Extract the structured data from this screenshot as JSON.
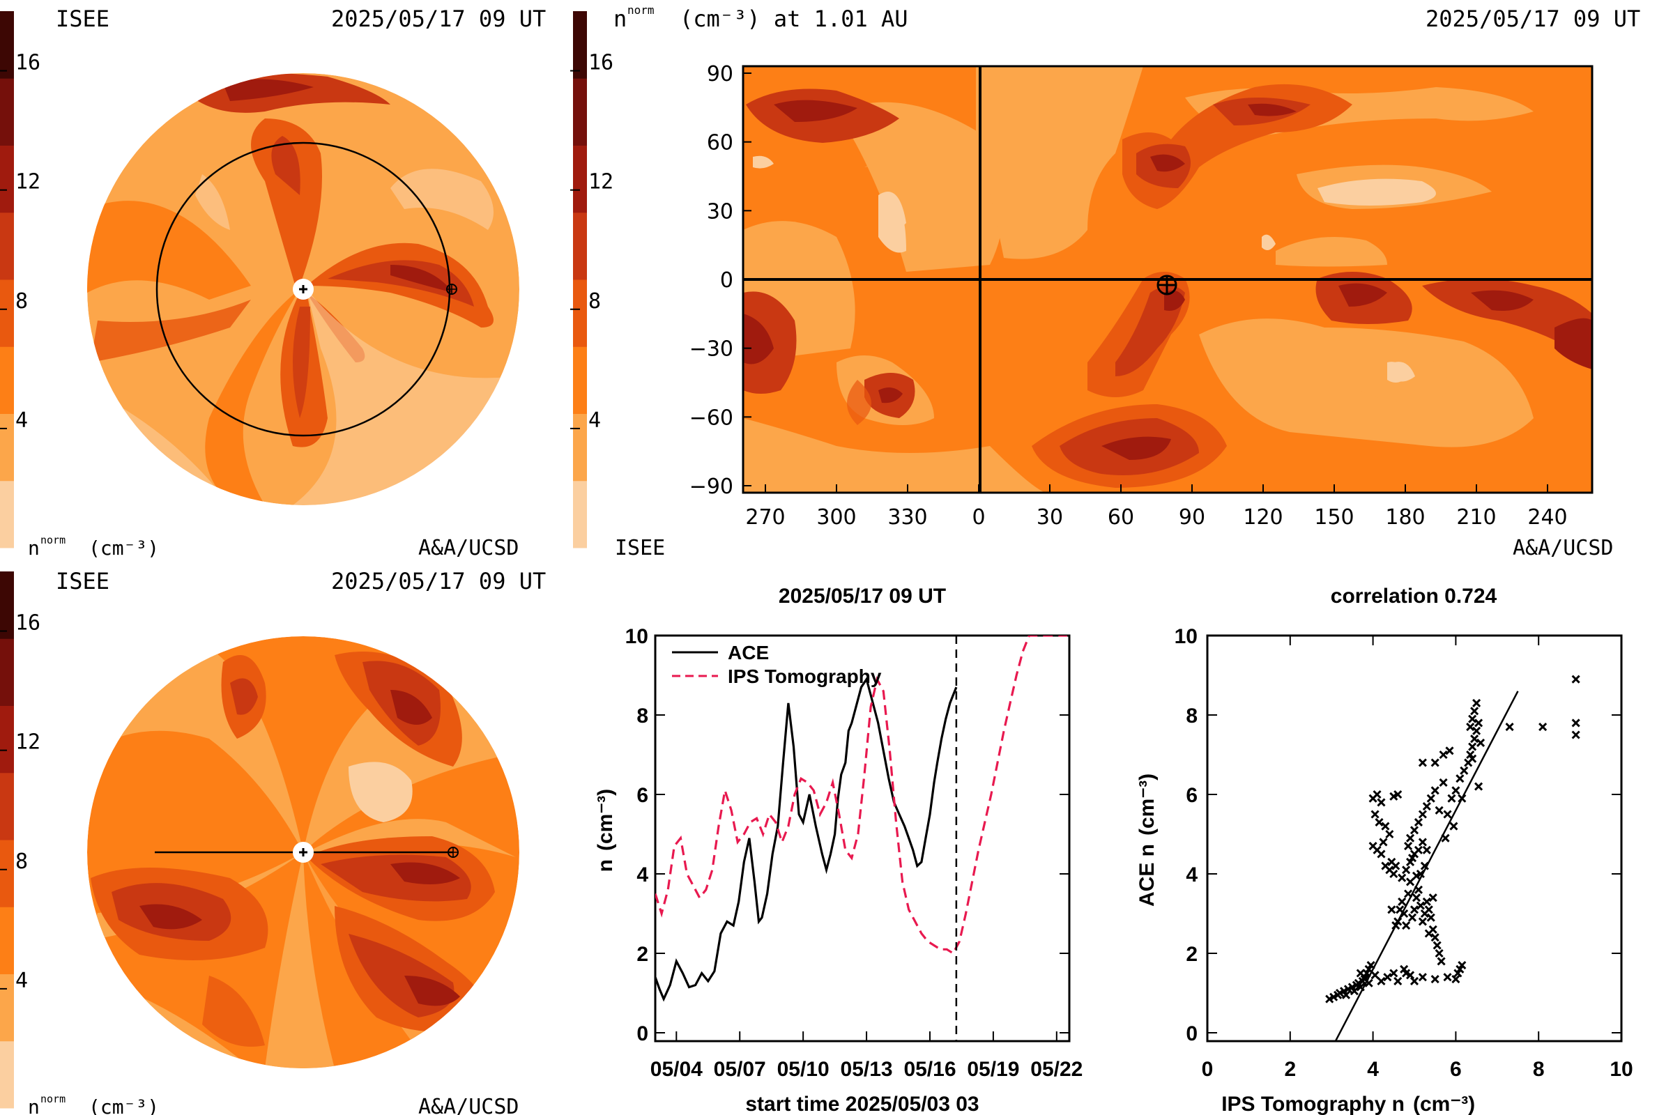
{
  "colors": {
    "bg": "#ffffff",
    "ink": "#000000",
    "levels": [
      "#fbcfa0",
      "#fca64a",
      "#fd7f16",
      "#e9590f",
      "#c93812",
      "#a01b0e",
      "#75100b",
      "#3d0704"
    ],
    "ips_line": "#e8194f"
  },
  "colorbar": {
    "ticks": [
      4,
      8,
      12,
      16
    ],
    "range": [
      0,
      18
    ],
    "title": "n",
    "title_sup": "norm",
    "title_unit": "(cm⁻³)"
  },
  "panels": {
    "top_left": {
      "label_left": "ISEE",
      "time": "2025/05/17 09 UT",
      "unit_main": "n",
      "unit_sup": "norm",
      "unit_rest": "(cm⁻³)",
      "credit": "A&A/UCSD"
    },
    "top_right": {
      "title_main": "n",
      "title_sup": "norm",
      "title_rest": "(cm⁻³) at 1.01 AU",
      "time": "2025/05/17 09 UT",
      "label_left": "ISEE",
      "credit": "A&A/UCSD"
    },
    "bottom_left": {
      "label_left": "ISEE",
      "time": "2025/05/17 09 UT",
      "unit_main": "n",
      "unit_sup": "norm",
      "unit_rest": "(cm⁻³)",
      "credit": "A&A/UCSD"
    }
  },
  "chart_data": [
    {
      "type": "heatmap",
      "name": "ecliptic-view",
      "title": "2025/05/17 09 UT",
      "colorbar_ticks": [
        4,
        8,
        12,
        16
      ]
    },
    {
      "type": "heatmap",
      "name": "meridional-view",
      "title": "2025/05/17 09 UT",
      "colorbar_ticks": [
        4,
        8,
        12,
        16
      ]
    },
    {
      "type": "heatmap",
      "name": "synoptic-map",
      "title": "n norm (cm⁻³) at 1.01 AU",
      "x_ticks": [
        270,
        300,
        330,
        0,
        30,
        60,
        90,
        120,
        150,
        180,
        210,
        240
      ],
      "y_ticks": [
        90,
        60,
        30,
        0,
        -30,
        -60,
        -90
      ],
      "earth_position": {
        "lon": 78,
        "lat": -2
      }
    },
    {
      "type": "line",
      "title": "2025/05/17 09 UT",
      "xlabel": "start time 2025/05/03 03",
      "ylabel_main": "n",
      "ylabel_unit": "(cm⁻³)",
      "x_tick_labels": [
        "05/04",
        "05/07",
        "05/10",
        "05/13",
        "05/16",
        "05/19",
        "05/22"
      ],
      "x_tick_days": [
        1,
        4,
        7,
        10,
        13,
        16,
        19
      ],
      "xlim": [
        0,
        19.6
      ],
      "ylim": [
        0,
        10
      ],
      "y_ticks": [
        0,
        2,
        4,
        6,
        8,
        10
      ],
      "current_time_day": 14.25,
      "series": [
        {
          "name": "ACE",
          "style": "solid",
          "x": [
            0,
            0.2,
            0.4,
            0.7,
            1.0,
            1.3,
            1.6,
            1.9,
            2.2,
            2.5,
            2.8,
            3.1,
            3.4,
            3.7,
            3.95,
            4.2,
            4.45,
            4.7,
            4.9,
            5.05,
            5.3,
            5.55,
            5.8,
            6.05,
            6.3,
            6.55,
            6.8,
            7.0,
            7.3,
            7.6,
            7.9,
            8.1,
            8.3,
            8.5,
            8.65,
            8.8,
            9.0,
            9.15,
            9.3,
            9.5,
            9.75,
            10.0,
            10.3,
            10.55,
            10.8,
            11.05,
            11.3,
            11.55,
            11.8,
            12.0,
            12.2,
            12.4,
            12.6,
            12.8,
            13.0,
            13.2,
            13.35,
            13.55,
            13.75,
            13.95,
            14.1,
            14.25
          ],
          "y": [
            1.4,
            1.1,
            0.85,
            1.2,
            1.8,
            1.5,
            1.15,
            1.2,
            1.5,
            1.3,
            1.55,
            2.5,
            2.8,
            2.7,
            3.3,
            4.3,
            4.9,
            3.8,
            2.8,
            2.9,
            3.5,
            4.5,
            5.2,
            6.8,
            8.3,
            7.2,
            5.5,
            5.3,
            6.0,
            5.2,
            4.5,
            4.1,
            4.5,
            5.0,
            5.9,
            6.5,
            6.8,
            7.6,
            7.8,
            8.2,
            8.7,
            8.9,
            8.3,
            7.8,
            7.1,
            6.4,
            5.8,
            5.5,
            5.2,
            4.9,
            4.6,
            4.2,
            4.3,
            4.9,
            5.5,
            6.3,
            6.8,
            7.4,
            7.9,
            8.3,
            8.5,
            8.7
          ]
        },
        {
          "name": "IPS Tomography",
          "style": "dashed",
          "x": [
            0,
            0.3,
            0.6,
            0.9,
            1.2,
            1.5,
            1.8,
            2.1,
            2.4,
            2.7,
            3.0,
            3.3,
            3.6,
            3.9,
            4.2,
            4.5,
            4.8,
            5.1,
            5.4,
            5.7,
            6.0,
            6.3,
            6.6,
            6.9,
            7.2,
            7.5,
            7.8,
            8.1,
            8.4,
            8.7,
            9.0,
            9.3,
            9.6,
            9.9,
            10.2,
            10.5,
            10.8,
            11.1,
            11.4,
            11.7,
            12.0,
            12.3,
            12.6,
            12.9,
            13.2,
            13.5,
            13.8,
            14.1,
            14.4,
            14.7,
            15.0,
            15.3,
            15.6,
            15.9,
            16.2,
            16.5,
            16.8,
            17.1,
            17.4,
            17.7,
            18.0,
            18.3,
            18.6,
            18.9,
            19.2,
            19.5
          ],
          "y": [
            3.5,
            3.0,
            3.6,
            4.7,
            4.9,
            4.0,
            3.7,
            3.4,
            3.6,
            4.1,
            5.2,
            6.1,
            5.6,
            4.8,
            5.0,
            5.3,
            5.4,
            5.0,
            5.5,
            5.3,
            4.8,
            5.2,
            6.0,
            6.4,
            6.3,
            6.1,
            5.5,
            5.8,
            6.3,
            5.5,
            4.6,
            4.4,
            5.0,
            6.5,
            8.2,
            8.9,
            8.6,
            7.1,
            5.3,
            3.8,
            3.1,
            2.8,
            2.5,
            2.3,
            2.2,
            2.1,
            2.1,
            2.0,
            2.3,
            3.0,
            3.8,
            4.6,
            5.3,
            6.0,
            6.8,
            7.6,
            8.3,
            9.0,
            9.6,
            10.0,
            10.0,
            10.0,
            10.0,
            10.0,
            10.0,
            10.0
          ]
        }
      ]
    },
    {
      "type": "scatter",
      "title": "correlation 0.724",
      "xlabel_main": "IPS Tomography n",
      "xlabel_unit": "(cm⁻³)",
      "ylabel_main": "ACE n",
      "ylabel_unit": "(cm⁻³)",
      "xlim": [
        0,
        10
      ],
      "ylim": [
        0,
        10
      ],
      "x_ticks": [
        0,
        2,
        4,
        6,
        8,
        10
      ],
      "y_ticks": [
        0,
        2,
        4,
        6,
        8,
        10
      ],
      "fit_line": {
        "x": [
          3.1,
          7.5
        ],
        "y": [
          -0.2,
          8.6
        ]
      },
      "points": [
        [
          2.95,
          0.85
        ],
        [
          3.05,
          0.9
        ],
        [
          3.15,
          0.95
        ],
        [
          3.2,
          1.0
        ],
        [
          3.3,
          1.05
        ],
        [
          3.35,
          0.95
        ],
        [
          3.4,
          1.1
        ],
        [
          3.5,
          1.15
        ],
        [
          3.55,
          1.05
        ],
        [
          3.6,
          1.2
        ],
        [
          3.65,
          1.25
        ],
        [
          3.7,
          1.15
        ],
        [
          3.75,
          1.3
        ],
        [
          3.8,
          1.4
        ],
        [
          3.85,
          1.5
        ],
        [
          3.9,
          1.6
        ],
        [
          3.95,
          1.7
        ],
        [
          3.7,
          1.5
        ],
        [
          3.8,
          1.35
        ],
        [
          3.9,
          1.25
        ],
        [
          4.05,
          1.45
        ],
        [
          4.2,
          1.3
        ],
        [
          4.35,
          1.4
        ],
        [
          4.5,
          1.5
        ],
        [
          4.6,
          1.3
        ],
        [
          4.75,
          1.6
        ],
        [
          4.8,
          1.5
        ],
        [
          4.9,
          1.45
        ],
        [
          5.0,
          1.3
        ],
        [
          5.2,
          1.4
        ],
        [
          5.5,
          1.35
        ],
        [
          5.8,
          1.4
        ],
        [
          6.0,
          1.35
        ],
        [
          6.05,
          1.5
        ],
        [
          6.1,
          1.6
        ],
        [
          6.15,
          1.7
        ],
        [
          4.0,
          4.7
        ],
        [
          4.1,
          4.6
        ],
        [
          4.2,
          4.5
        ],
        [
          4.3,
          4.2
        ],
        [
          4.4,
          4.1
        ],
        [
          4.45,
          4.3
        ],
        [
          4.5,
          4.0
        ],
        [
          4.55,
          4.2
        ],
        [
          4.0,
          5.9
        ],
        [
          4.05,
          5.5
        ],
        [
          4.2,
          5.8
        ],
        [
          4.3,
          5.2
        ],
        [
          4.4,
          5.0
        ],
        [
          4.5,
          5.95
        ],
        [
          4.6,
          6.0
        ],
        [
          4.1,
          6.0
        ],
        [
          4.6,
          2.8
        ],
        [
          4.65,
          3.1
        ],
        [
          4.7,
          3.3
        ],
        [
          4.75,
          3.0
        ],
        [
          4.8,
          2.7
        ],
        [
          4.85,
          3.5
        ],
        [
          4.9,
          3.8
        ],
        [
          4.95,
          2.9
        ],
        [
          5.0,
          3.1
        ],
        [
          5.05,
          3.4
        ],
        [
          5.1,
          3.6
        ],
        [
          5.15,
          3.2
        ],
        [
          5.2,
          2.8
        ],
        [
          5.25,
          3.0
        ],
        [
          5.3,
          3.3
        ],
        [
          5.35,
          3.1
        ],
        [
          5.4,
          2.9
        ],
        [
          5.45,
          2.6
        ],
        [
          5.5,
          2.4
        ],
        [
          5.55,
          2.2
        ],
        [
          5.6,
          2.0
        ],
        [
          5.65,
          1.8
        ],
        [
          4.7,
          3.9
        ],
        [
          4.8,
          4.1
        ],
        [
          4.9,
          4.3
        ],
        [
          5.0,
          4.5
        ],
        [
          5.1,
          4.6
        ],
        [
          5.2,
          4.8
        ],
        [
          5.3,
          4.6
        ],
        [
          5.25,
          4.2
        ],
        [
          5.15,
          4.0
        ],
        [
          5.05,
          3.95
        ],
        [
          4.95,
          4.4
        ],
        [
          4.85,
          4.7
        ],
        [
          4.9,
          4.9
        ],
        [
          5.0,
          5.1
        ],
        [
          5.1,
          5.3
        ],
        [
          5.2,
          5.5
        ],
        [
          5.3,
          5.7
        ],
        [
          5.4,
          5.9
        ],
        [
          5.5,
          6.1
        ],
        [
          5.6,
          5.6
        ],
        [
          5.7,
          6.3
        ],
        [
          5.8,
          5.5
        ],
        [
          5.9,
          5.9
        ],
        [
          6.0,
          6.1
        ],
        [
          6.1,
          6.4
        ],
        [
          6.2,
          6.6
        ],
        [
          6.3,
          6.8
        ],
        [
          6.35,
          7.0
        ],
        [
          6.4,
          7.2
        ],
        [
          6.45,
          7.4
        ],
        [
          6.5,
          7.6
        ],
        [
          6.4,
          7.9
        ],
        [
          6.45,
          8.1
        ],
        [
          6.5,
          8.3
        ],
        [
          6.35,
          7.7
        ],
        [
          6.4,
          6.9
        ],
        [
          5.2,
          6.8
        ],
        [
          5.5,
          6.8
        ],
        [
          5.85,
          7.1
        ],
        [
          5.7,
          7.0
        ],
        [
          6.55,
          7.8
        ],
        [
          6.6,
          7.3
        ],
        [
          6.55,
          6.2
        ],
        [
          7.3,
          7.7
        ],
        [
          8.1,
          7.7
        ],
        [
          8.9,
          8.9
        ],
        [
          8.9,
          7.8
        ],
        [
          8.9,
          7.5
        ],
        [
          4.15,
          5.3
        ],
        [
          4.25,
          4.8
        ],
        [
          5.95,
          5.2
        ],
        [
          6.15,
          5.9
        ],
        [
          5.75,
          4.9
        ],
        [
          5.45,
          3.4
        ],
        [
          5.35,
          2.5
        ],
        [
          4.55,
          2.7
        ],
        [
          4.45,
          3.1
        ]
      ]
    }
  ]
}
